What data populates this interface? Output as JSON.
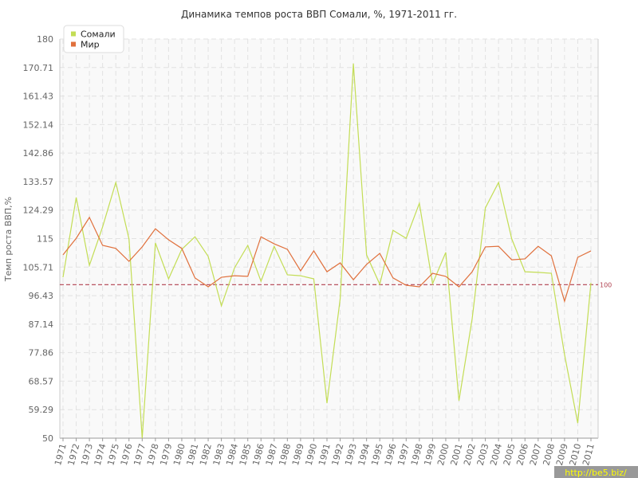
{
  "chart_data": {
    "type": "line",
    "title": "Динамика темпов роста ВВП Сомали, %, 1971-2011 гг.",
    "y_label": "Темп роста ВВП,%",
    "categories": [
      "1971",
      "1972",
      "1973",
      "1974",
      "1975",
      "1976",
      "1977",
      "1978",
      "1979",
      "1980",
      "1981",
      "1982",
      "1983",
      "1984",
      "1985",
      "1986",
      "1987",
      "1988",
      "1989",
      "1990",
      "1991",
      "1992",
      "1993",
      "1994",
      "1995",
      "1996",
      "1997",
      "1998",
      "1999",
      "2000",
      "2001",
      "2002",
      "2003",
      "2004",
      "2005",
      "2006",
      "2007",
      "2008",
      "2009",
      "2010",
      "2011"
    ],
    "series": [
      {
        "name": "Сомали",
        "color": "#c3dd55",
        "values": [
          102.4,
          128.4,
          106.3,
          118.8,
          133.3,
          114.9,
          50,
          113.6,
          101.9,
          111.5,
          115.6,
          109.2,
          93.1,
          105.5,
          112.8,
          101.1,
          112.5,
          103.2,
          102.9,
          101.9,
          61.4,
          95.4,
          172,
          109.7,
          100.1,
          117.7,
          115.1,
          126.5,
          100.3,
          110.5,
          62.2,
          88.9,
          125,
          133.3,
          114.9,
          104.2,
          104,
          103.7,
          77.2,
          54.9,
          100.6
        ]
      },
      {
        "name": "Мир",
        "color": "#e0703c",
        "values": [
          109.7,
          115.1,
          121.9,
          112.8,
          111.8,
          107.6,
          112.3,
          118.2,
          114.6,
          111.8,
          102.2,
          99.3,
          102.4,
          102.9,
          102.7,
          115.6,
          113.3,
          111.5,
          104.5,
          111,
          104.2,
          107.1,
          101.6,
          106.6,
          110.2,
          102.2,
          99.8,
          99.3,
          103.7,
          102.7,
          99.3,
          104.2,
          112.3,
          112.5,
          108.1,
          108.4,
          112.5,
          109.4,
          94.6,
          108.9,
          111
        ]
      }
    ],
    "reference_line": 100,
    "reference_color": "#b0404f",
    "ylim": [
      50,
      180
    ],
    "yticks": [
      50,
      59.29,
      68.57,
      77.86,
      87.14,
      96.43,
      105.71,
      115,
      124.29,
      133.57,
      142.86,
      152.14,
      161.43,
      170.71,
      180
    ],
    "grid": true,
    "legend": "top-left"
  },
  "watermark": "http://be5.biz/"
}
